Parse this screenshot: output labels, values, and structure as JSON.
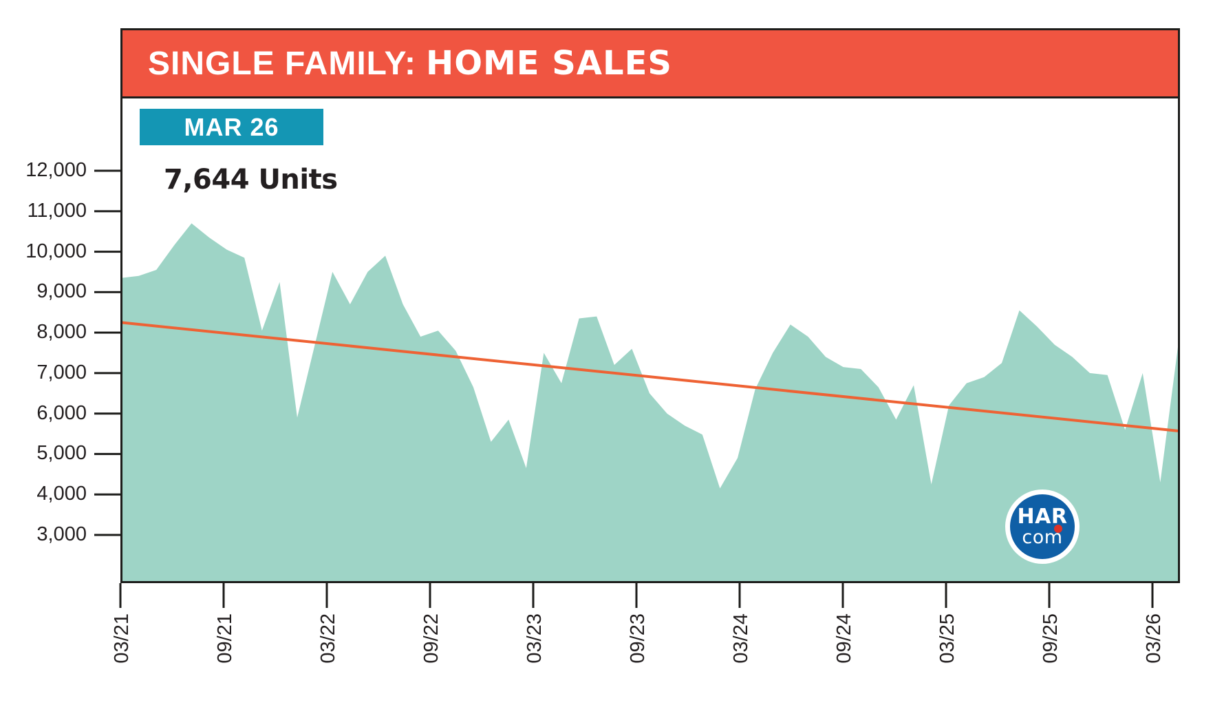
{
  "header": {
    "title_light": "SINGLE FAMILY:",
    "title_heavy": "HOME SALES"
  },
  "callout": {
    "badge_label": "MAR 26",
    "units_label": "7,644 Units",
    "units_value": 7644
  },
  "logo": {
    "line1": "HAR",
    "line2": "com"
  },
  "colors": {
    "header_bg": "#F05541",
    "badge_bg": "#1496B4",
    "area_fill": "#9ED4C6",
    "trend_line": "#EE6234",
    "ink": "#231F20",
    "axis": "#1d1d1b",
    "logo_blue": "#0F5FA6",
    "logo_red": "#DE3327",
    "title_text": "#ffffff"
  },
  "chart_data": {
    "type": "area",
    "title": "SINGLE FAMILY: HOME SALES",
    "xlabel": "",
    "ylabel": "",
    "grid": false,
    "legend": "none",
    "ylim": [
      3000,
      12000
    ],
    "x": [
      "03/21",
      "04/21",
      "05/21",
      "06/21",
      "07/21",
      "08/21",
      "09/21",
      "10/21",
      "11/21",
      "12/21",
      "01/22",
      "02/22",
      "03/22",
      "04/22",
      "05/22",
      "06/22",
      "07/22",
      "08/22",
      "09/22",
      "10/22",
      "11/22",
      "12/22",
      "01/23",
      "02/23",
      "03/23",
      "04/23",
      "05/23",
      "06/23",
      "07/23",
      "08/23",
      "09/23",
      "10/23",
      "11/23",
      "12/23",
      "01/24",
      "02/24",
      "03/24",
      "04/24",
      "05/24",
      "06/24",
      "07/24",
      "08/24",
      "09/24",
      "10/24",
      "11/24",
      "12/24",
      "01/25",
      "02/25",
      "03/25",
      "04/25",
      "05/25",
      "06/25",
      "07/25",
      "08/25",
      "09/25",
      "10/25",
      "11/25",
      "12/25",
      "01/26",
      "02/26",
      "03/26"
    ],
    "values": [
      9350,
      9400,
      9550,
      10150,
      10700,
      10350,
      10050,
      9850,
      8050,
      9250,
      5900,
      7700,
      9500,
      8700,
      9500,
      9900,
      8700,
      7900,
      8050,
      7550,
      6650,
      5300,
      5850,
      4650,
      7500,
      6750,
      8350,
      8400,
      7200,
      7600,
      6500,
      6000,
      5700,
      5480,
      4150,
      4900,
      6600,
      7500,
      8200,
      7900,
      7400,
      7150,
      7100,
      6650,
      5850,
      6700,
      4250,
      6200,
      6750,
      6900,
      7250,
      8550,
      8150,
      7700,
      7400,
      7000,
      6950,
      5600,
      7000,
      4300,
      7644
    ],
    "latest_point": {
      "x": "03/26",
      "value": 7644
    },
    "trend": {
      "type": "linear",
      "start_value": 8250,
      "end_value": 5570
    },
    "x_tick_labels": [
      "03/21",
      "09/21",
      "03/22",
      "09/22",
      "03/23",
      "09/23",
      "03/24",
      "09/24",
      "03/25",
      "09/25",
      "03/26"
    ],
    "y_ticks": [
      {
        "value": 12000,
        "label": "12,000"
      },
      {
        "value": 11000,
        "label": "11,000"
      },
      {
        "value": 10000,
        "label": "10,000"
      },
      {
        "value": 9000,
        "label": "9,000"
      },
      {
        "value": 8000,
        "label": "8,000"
      },
      {
        "value": 7000,
        "label": "7,000"
      },
      {
        "value": 6000,
        "label": "6,000"
      },
      {
        "value": 5000,
        "label": "5,000"
      },
      {
        "value": 4000,
        "label": "4,000"
      },
      {
        "value": 3000,
        "label": "3,000"
      }
    ]
  }
}
